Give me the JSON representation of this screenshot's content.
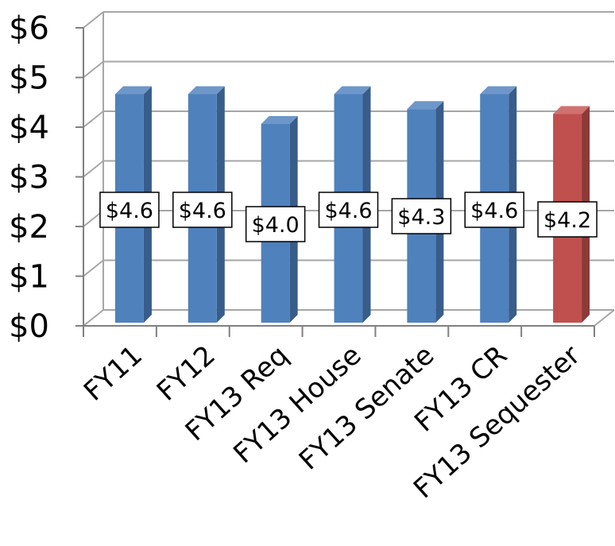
{
  "chart_data": {
    "type": "bar",
    "categories": [
      "FY11",
      "FY12",
      "FY13 Req",
      "FY13 House",
      "FY13 Senate",
      "FY13 CR",
      "FY13 Sequester"
    ],
    "series": [
      {
        "values": [
          4.6,
          4.6,
          4.0,
          4.6,
          4.3,
          4.6,
          4.2
        ]
      }
    ],
    "data_labels": [
      "$4.6",
      "$4.6",
      "$4.0",
      "$4.6",
      "$4.3",
      "$4.6",
      "$4.2"
    ],
    "y_tick_labels": [
      "$0",
      "$1",
      "$2",
      "$3",
      "$4",
      "$5",
      "$6"
    ],
    "ylim": [
      0,
      6
    ],
    "grid": true,
    "legend": "none",
    "style": "3d-column",
    "colors": {
      "default_front": "#4F81BD",
      "default_side": "#385D8A",
      "default_top": "#6E97C9",
      "highlight_front": "#C0504D",
      "highlight_side": "#8C3A38",
      "highlight_top": "#D0716E",
      "highlight_index": 6,
      "grid": "#a6a6a6",
      "axis": "#808080"
    }
  }
}
